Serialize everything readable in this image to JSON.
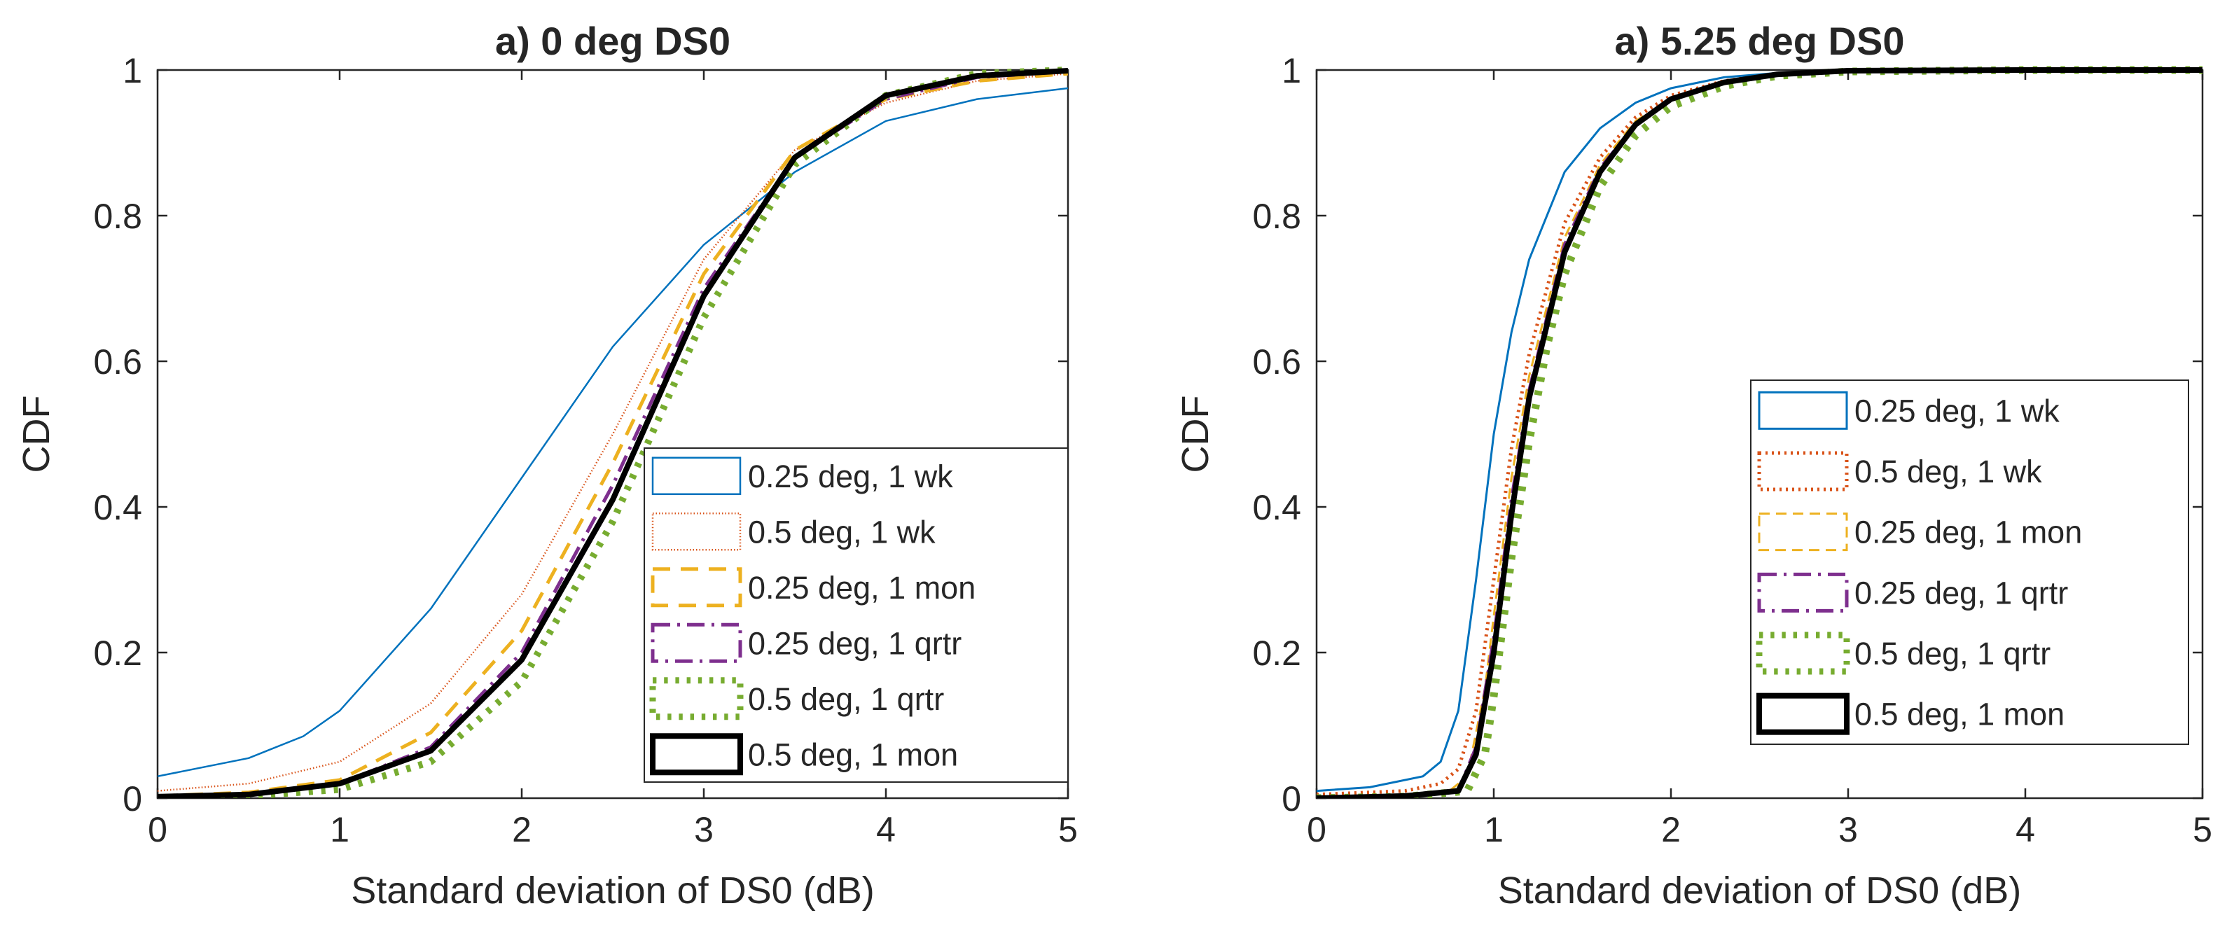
{
  "chart_data": [
    {
      "type": "line",
      "title": "a) 0 deg DS0",
      "xlabel": "Standard deviation of DS0 (dB)",
      "ylabel": "CDF",
      "xlim": [
        0,
        5
      ],
      "ylim": [
        0,
        1
      ],
      "x_ticks": [
        "0",
        "1",
        "2",
        "3",
        "4",
        "5"
      ],
      "y_ticks": [
        "0",
        "0.2",
        "0.4",
        "0.6",
        "0.8",
        "1"
      ],
      "grid": false,
      "legend_position": "bottom-right",
      "series": [
        {
          "name": "0.25 deg, 1 wk",
          "color": "#0072BD",
          "dash": "solid",
          "width": 2.5,
          "x": [
            0,
            0.5,
            0.8,
            1.0,
            1.5,
            2.0,
            2.5,
            3.0,
            3.5,
            4.0,
            4.5,
            5.0
          ],
          "y": [
            0.03,
            0.055,
            0.085,
            0.12,
            0.26,
            0.44,
            0.62,
            0.76,
            0.86,
            0.93,
            0.96,
            0.975
          ]
        },
        {
          "name": "0.5 deg, 1 wk",
          "color": "#D95319",
          "dash": "dot",
          "width": 2.5,
          "x": [
            0,
            0.5,
            1.0,
            1.5,
            2.0,
            2.5,
            3.0,
            3.5,
            4.0,
            4.5,
            5.0
          ],
          "y": [
            0.01,
            0.02,
            0.05,
            0.13,
            0.28,
            0.5,
            0.74,
            0.89,
            0.955,
            0.985,
            0.995
          ]
        },
        {
          "name": "0.25 deg, 1 mon",
          "color": "#EDB120",
          "dash": "dash",
          "width": 5,
          "x": [
            0,
            0.5,
            1.0,
            1.5,
            2.0,
            2.5,
            3.0,
            3.5,
            4.0,
            4.5,
            5.0
          ],
          "y": [
            0.003,
            0.008,
            0.025,
            0.09,
            0.23,
            0.46,
            0.72,
            0.89,
            0.96,
            0.985,
            0.995
          ]
        },
        {
          "name": "0.25 deg, 1 qrtr",
          "color": "#7E2F8E",
          "dash": "dashdot",
          "width": 5,
          "x": [
            0,
            0.5,
            1.0,
            1.5,
            2.0,
            2.5,
            3.0,
            3.5,
            4.0,
            4.5,
            5.0
          ],
          "y": [
            0.002,
            0.005,
            0.02,
            0.07,
            0.2,
            0.43,
            0.7,
            0.88,
            0.96,
            0.99,
            0.998
          ]
        },
        {
          "name": "0.5 deg, 1 qrtr",
          "color": "#77AC30",
          "dash": "dot",
          "width": 10,
          "x": [
            0,
            0.5,
            1.0,
            1.5,
            2.0,
            2.5,
            3.0,
            3.5,
            4.0,
            4.5,
            5.0
          ],
          "y": [
            0.001,
            0.003,
            0.012,
            0.05,
            0.16,
            0.38,
            0.66,
            0.87,
            0.965,
            0.995,
            1.0
          ]
        },
        {
          "name": "0.5 deg, 1 mon",
          "color": "#000000",
          "dash": "solid",
          "width": 8,
          "x": [
            0,
            0.5,
            1.0,
            1.5,
            2.0,
            2.5,
            3.0,
            3.5,
            4.0,
            4.5,
            5.0
          ],
          "y": [
            0.002,
            0.005,
            0.02,
            0.065,
            0.19,
            0.41,
            0.69,
            0.88,
            0.965,
            0.992,
            0.999
          ]
        }
      ]
    },
    {
      "type": "line",
      "title": "a) 5.25 deg DS0",
      "xlabel": "Standard deviation of DS0 (dB)",
      "ylabel": "CDF",
      "xlim": [
        0,
        5
      ],
      "ylim": [
        0,
        1
      ],
      "x_ticks": [
        "0",
        "1",
        "2",
        "3",
        "4",
        "5"
      ],
      "y_ticks": [
        "0",
        "0.2",
        "0.4",
        "0.6",
        "0.8",
        "1"
      ],
      "grid": false,
      "legend_position": "right",
      "series": [
        {
          "name": "0.25 deg, 1 wk",
          "color": "#0072BD",
          "dash": "solid",
          "width": 3,
          "x": [
            0,
            0.3,
            0.6,
            0.7,
            0.8,
            0.9,
            1.0,
            1.1,
            1.2,
            1.4,
            1.6,
            1.8,
            2.0,
            2.3,
            2.6,
            3.0,
            4.0,
            5.0
          ],
          "y": [
            0.01,
            0.015,
            0.03,
            0.05,
            0.12,
            0.3,
            0.5,
            0.64,
            0.74,
            0.86,
            0.92,
            0.955,
            0.975,
            0.99,
            0.996,
            0.999,
            1.0,
            1.0
          ]
        },
        {
          "name": "0.5 deg, 1 wk",
          "color": "#D95319",
          "dash": "dot",
          "width": 5,
          "x": [
            0,
            0.5,
            0.7,
            0.8,
            0.9,
            1.0,
            1.1,
            1.2,
            1.4,
            1.6,
            1.8,
            2.0,
            2.3,
            2.6,
            3.0,
            4.0,
            5.0
          ],
          "y": [
            0.005,
            0.01,
            0.02,
            0.04,
            0.12,
            0.3,
            0.48,
            0.61,
            0.79,
            0.88,
            0.935,
            0.965,
            0.985,
            0.995,
            0.999,
            1.0,
            1.0
          ]
        },
        {
          "name": "0.25 deg, 1 mon",
          "color": "#EDB120",
          "dash": "dash",
          "width": 3,
          "x": [
            0,
            0.5,
            0.75,
            0.85,
            0.95,
            1.0,
            1.1,
            1.2,
            1.4,
            1.6,
            1.8,
            2.0,
            2.3,
            2.6,
            3.0,
            4.0,
            5.0
          ],
          "y": [
            0.0,
            0.005,
            0.01,
            0.03,
            0.15,
            0.25,
            0.44,
            0.58,
            0.77,
            0.87,
            0.93,
            0.96,
            0.985,
            0.995,
            0.999,
            1.0,
            1.0
          ]
        },
        {
          "name": "0.25 deg, 1 qrtr",
          "color": "#7E2F8E",
          "dash": "dashdot",
          "width": 5,
          "x": [
            0,
            0.5,
            0.8,
            0.9,
            1.0,
            1.1,
            1.2,
            1.4,
            1.6,
            1.8,
            2.0,
            2.3,
            2.6,
            3.0,
            4.0,
            5.0
          ],
          "y": [
            0.0,
            0.003,
            0.01,
            0.07,
            0.22,
            0.41,
            0.56,
            0.76,
            0.865,
            0.925,
            0.96,
            0.983,
            0.994,
            0.999,
            1.0,
            1.0
          ]
        },
        {
          "name": "0.5 deg, 1 qrtr",
          "color": "#77AC30",
          "dash": "dot",
          "width": 11,
          "x": [
            0,
            0.5,
            0.85,
            0.95,
            1.0,
            1.1,
            1.2,
            1.3,
            1.4,
            1.6,
            1.8,
            2.0,
            2.3,
            2.6,
            3.0,
            4.0,
            5.0
          ],
          "y": [
            0.0,
            0.002,
            0.01,
            0.06,
            0.14,
            0.33,
            0.49,
            0.62,
            0.72,
            0.84,
            0.91,
            0.95,
            0.978,
            0.992,
            0.998,
            1.0,
            1.0
          ]
        },
        {
          "name": "0.5 deg, 1 mon",
          "color": "#000000",
          "dash": "solid",
          "width": 8,
          "x": [
            0,
            0.5,
            0.8,
            0.9,
            1.0,
            1.1,
            1.2,
            1.4,
            1.6,
            1.8,
            2.0,
            2.3,
            2.6,
            3.0,
            4.0,
            5.0
          ],
          "y": [
            0.0,
            0.003,
            0.01,
            0.06,
            0.2,
            0.39,
            0.55,
            0.75,
            0.86,
            0.925,
            0.96,
            0.983,
            0.994,
            0.999,
            1.0,
            1.0
          ]
        }
      ]
    }
  ]
}
